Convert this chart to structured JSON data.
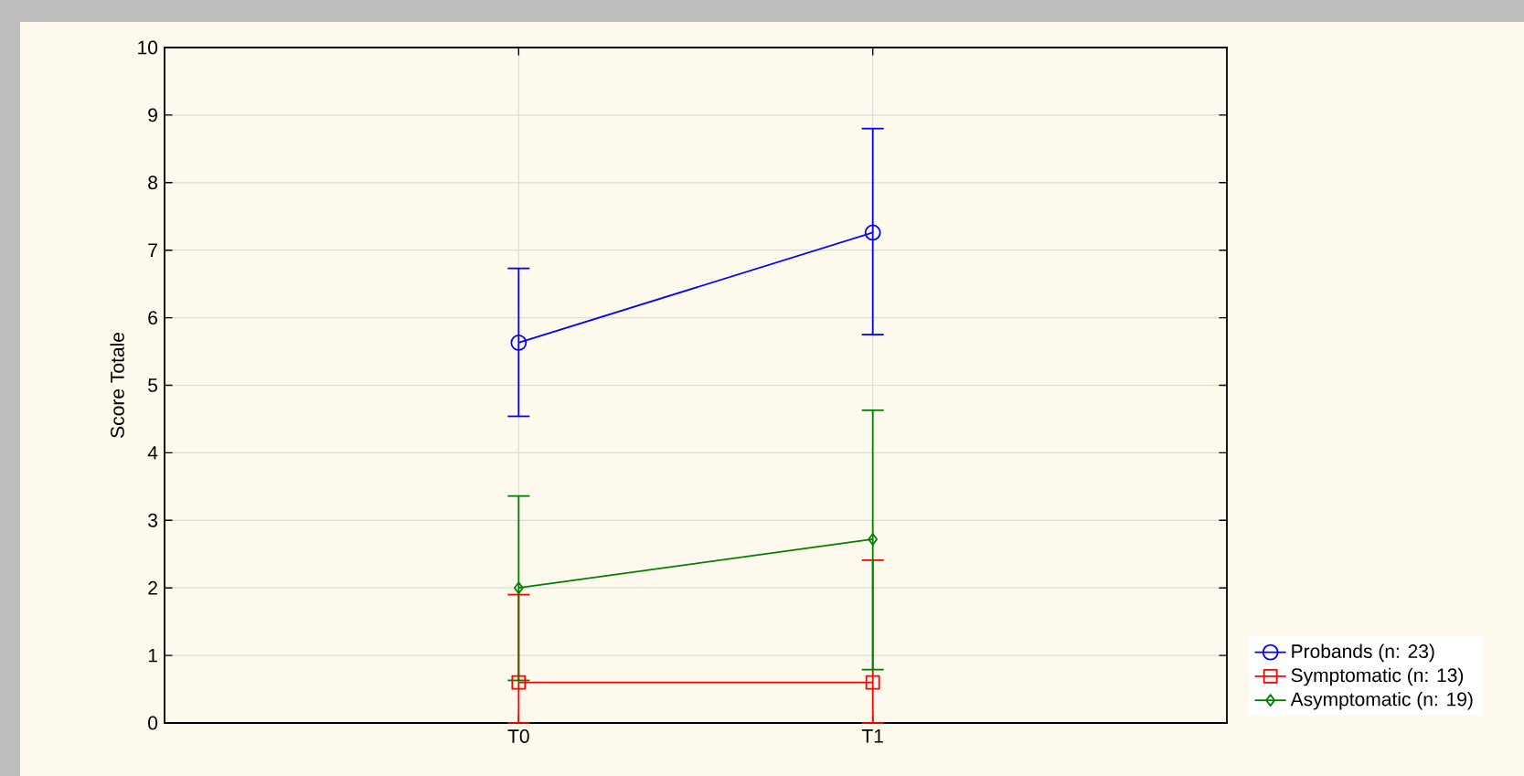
{
  "chart_data": {
    "type": "line",
    "ylabel": "Score Totale",
    "categories": [
      "T0",
      "T1"
    ],
    "ylim": [
      0,
      10
    ],
    "yticks": [
      0,
      1,
      2,
      3,
      4,
      5,
      6,
      7,
      8,
      9,
      10
    ],
    "grid": true,
    "legend": "bottom right",
    "line_style": "solid",
    "series": [
      {
        "name": "Probands (n: 23)",
        "color": "#0000ff",
        "marker": "circle",
        "values": [
          5.63,
          7.26
        ],
        "errors": [
          [
            4.54,
            6.73
          ],
          [
            5.75,
            8.8
          ]
        ]
      },
      {
        "name": "Symptomatic (n: 13)",
        "color": "#ff0000",
        "marker": "square",
        "values": [
          0.6,
          0.6
        ],
        "errors": [
          [
            0,
            1.9
          ],
          [
            0,
            2.41
          ]
        ]
      },
      {
        "name": "Asymptomatic (n: 19)",
        "color": "#008000",
        "marker": "diamond",
        "values": [
          2.0,
          2.72
        ],
        "errors": [
          [
            0.63,
            3.36
          ],
          [
            0.79,
            4.63
          ]
        ]
      }
    ]
  }
}
